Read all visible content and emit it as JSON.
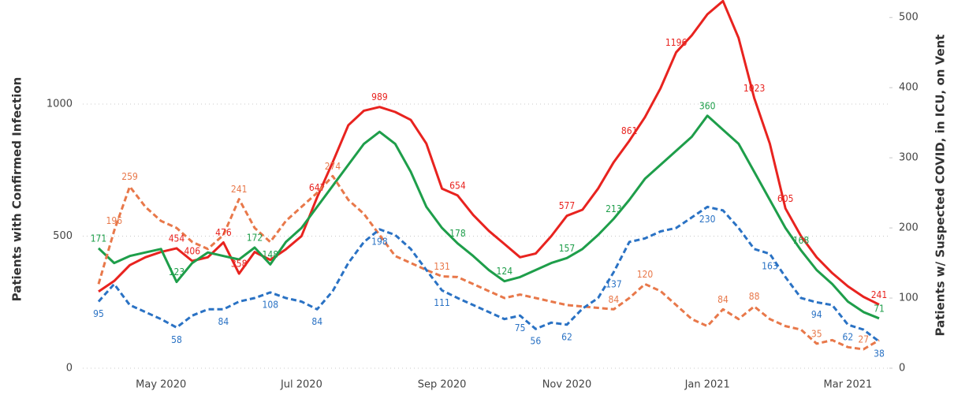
{
  "chart_data": {
    "type": "line",
    "y_label": "Patients with Confirmed Infection",
    "y2_label": "Patients w/ Suspected COVID, in ICU, on Vent",
    "categories": [
      null,
      null,
      null,
      null,
      "May 2020",
      null,
      null,
      null,
      null,
      null,
      null,
      null,
      null,
      "Jul 2020",
      null,
      null,
      null,
      null,
      null,
      null,
      null,
      null,
      "Sep 2020",
      null,
      null,
      null,
      null,
      null,
      null,
      null,
      "Nov 2020",
      null,
      null,
      null,
      null,
      null,
      null,
      null,
      null,
      "Jan 2021",
      null,
      null,
      null,
      null,
      null,
      null,
      null,
      null,
      "Mar 2021",
      null,
      null
    ],
    "ylim": [
      0,
      1394
    ],
    "yticks": [
      0,
      500,
      1000
    ],
    "y2lim": [
      0,
      525
    ],
    "y2ticks": [
      0,
      100,
      200,
      300,
      400,
      500
    ],
    "grid": true,
    "series": [
      {
        "color": "#e8231f",
        "dashed": false,
        "axis": "y",
        "values": [
          290,
          330,
          390,
          420,
          440,
          454,
          406,
          420,
          476,
          358,
          440,
          410,
          450,
          500,
          647,
          780,
          920,
          975,
          989,
          970,
          940,
          850,
          680,
          654,
          580,
          520,
          470,
          420,
          434,
          500,
          577,
          600,
          680,
          780,
          861,
          950,
          1060,
          1196,
          1260,
          1340,
          1390,
          1250,
          1023,
          850,
          605,
          500,
          420,
          360,
          310,
          270,
          241
        ],
        "value_labels": [
          null,
          null,
          null,
          null,
          null,
          "454",
          "406",
          null,
          "476",
          "358",
          null,
          null,
          null,
          null,
          "647",
          null,
          null,
          null,
          "989",
          null,
          null,
          null,
          null,
          "654",
          null,
          null,
          null,
          null,
          null,
          null,
          "577",
          null,
          null,
          null,
          "861",
          null,
          null,
          "1196",
          null,
          null,
          null,
          null,
          "1023",
          null,
          "605",
          null,
          null,
          null,
          null,
          null,
          "241"
        ]
      },
      {
        "color": "#1e9e4a",
        "dashed": false,
        "axis": "y2",
        "values": [
          171,
          150,
          160,
          165,
          170,
          123,
          150,
          165,
          160,
          155,
          172,
          148,
          180,
          200,
          230,
          260,
          290,
          320,
          337,
          320,
          280,
          230,
          200,
          178,
          160,
          140,
          124,
          130,
          140,
          150,
          157,
          170,
          190,
          213,
          240,
          270,
          290,
          310,
          330,
          360,
          340,
          320,
          280,
          240,
          200,
          168,
          140,
          120,
          95,
          80,
          71
        ],
        "value_labels": [
          "171",
          null,
          null,
          null,
          null,
          "123",
          null,
          null,
          null,
          null,
          "172",
          "148",
          null,
          null,
          null,
          null,
          null,
          null,
          null,
          null,
          null,
          null,
          null,
          "178",
          null,
          null,
          "124",
          null,
          null,
          null,
          "157",
          null,
          null,
          "213",
          null,
          null,
          null,
          null,
          null,
          "360",
          null,
          null,
          null,
          null,
          null,
          "168",
          null,
          null,
          null,
          null,
          "71"
        ]
      },
      {
        "color": "#e8784a",
        "dashed": true,
        "axis": "y2",
        "values": [
          120,
          196,
          259,
          230,
          210,
          200,
          180,
          170,
          190,
          241,
          200,
          180,
          210,
          230,
          250,
          274,
          240,
          220,
          190,
          160,
          150,
          140,
          131,
          130,
          120,
          110,
          100,
          105,
          100,
          95,
          90,
          88,
          86,
          84,
          100,
          120,
          110,
          90,
          70,
          60,
          84,
          70,
          88,
          70,
          60,
          55,
          35,
          40,
          30,
          27,
          40
        ],
        "value_labels": [
          null,
          "196",
          "259",
          null,
          null,
          null,
          null,
          null,
          null,
          "241",
          null,
          null,
          null,
          null,
          null,
          "274",
          null,
          null,
          null,
          null,
          null,
          null,
          "131",
          null,
          null,
          null,
          null,
          null,
          null,
          null,
          null,
          null,
          null,
          "84",
          null,
          "120",
          null,
          null,
          null,
          null,
          "84",
          null,
          "88",
          null,
          null,
          null,
          "35",
          null,
          null,
          "27",
          null
        ]
      },
      {
        "color": "#2a72c4",
        "dashed": true,
        "axis": "y2",
        "values": [
          95,
          120,
          90,
          80,
          70,
          58,
          75,
          84,
          84,
          95,
          100,
          108,
          100,
          95,
          84,
          110,
          150,
          180,
          198,
          190,
          170,
          140,
          111,
          100,
          90,
          80,
          70,
          75,
          56,
          65,
          62,
          85,
          100,
          137,
          180,
          185,
          195,
          200,
          215,
          230,
          225,
          200,
          170,
          163,
          130,
          100,
          94,
          90,
          62,
          55,
          38
        ],
        "value_labels": [
          "95",
          null,
          null,
          null,
          null,
          "58",
          null,
          null,
          "84",
          null,
          null,
          "108",
          null,
          null,
          "84",
          null,
          null,
          null,
          "198",
          null,
          null,
          null,
          "111",
          null,
          null,
          null,
          null,
          "75",
          "56",
          null,
          "62",
          null,
          null,
          "137",
          null,
          null,
          null,
          null,
          null,
          "230",
          null,
          null,
          null,
          "163",
          null,
          null,
          "94",
          null,
          "62",
          null,
          "38"
        ]
      }
    ]
  }
}
